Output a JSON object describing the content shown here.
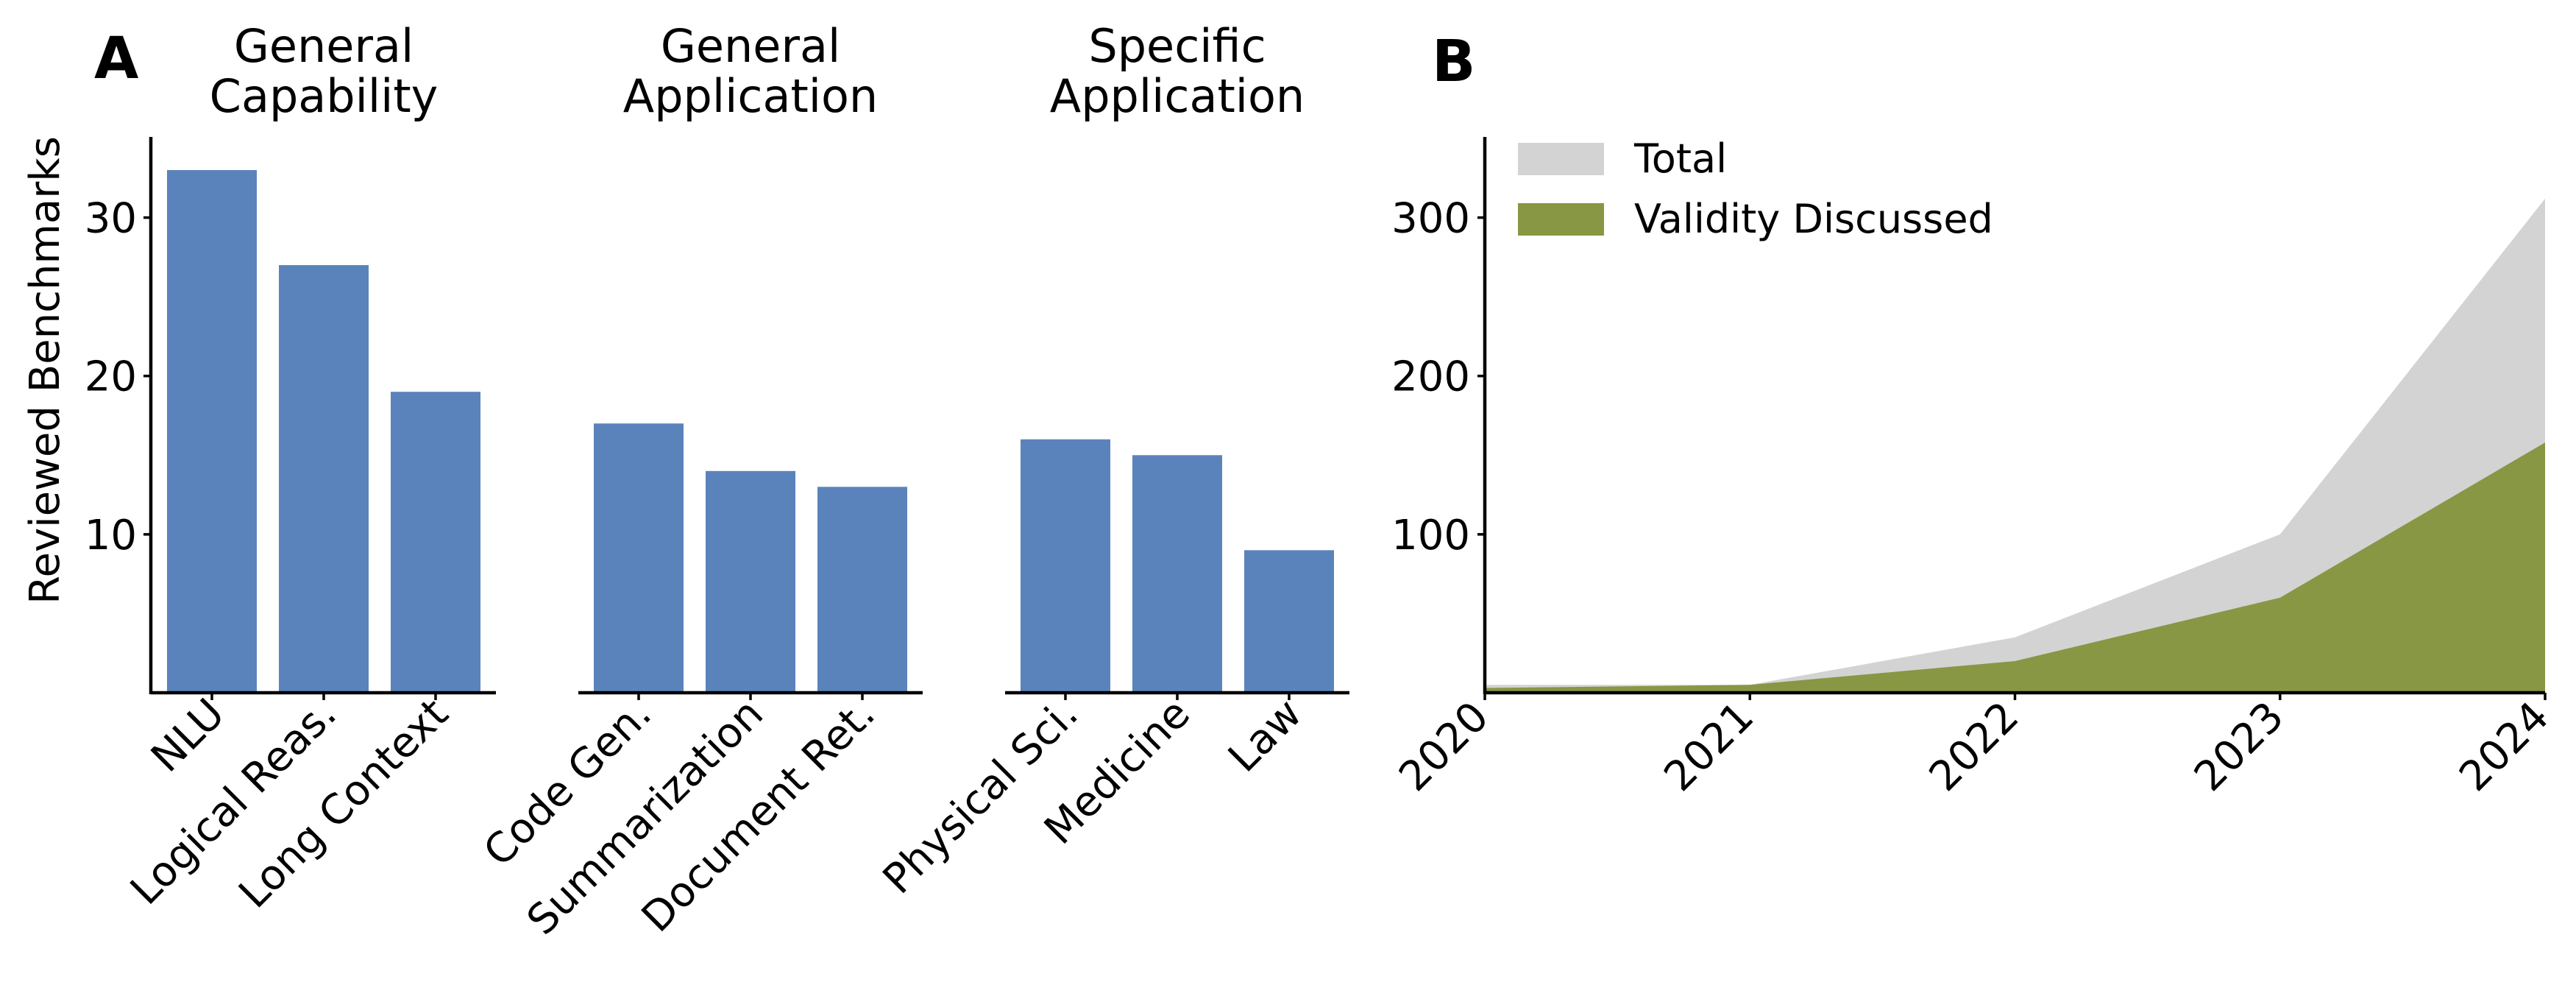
{
  "figure": {
    "panels": [
      {
        "letter": "A",
        "chart_data": {
          "type": "bar",
          "ylabel": "Reviewed Benchmarks",
          "ylim": [
            0,
            35
          ],
          "yticks": [
            10,
            20,
            30
          ],
          "grid": false,
          "bar_color": "#5b83bb",
          "groups": [
            {
              "title": [
                "General",
                "Capability"
              ],
              "categories": [
                "NLU",
                "Logical Reas.",
                "Long Context"
              ],
              "values": [
                33,
                27,
                19
              ]
            },
            {
              "title": [
                "General",
                "Application"
              ],
              "categories": [
                "Code Gen.",
                "Summarization",
                "Document Ret."
              ],
              "values": [
                17,
                14,
                13
              ]
            },
            {
              "title": [
                "Specific",
                "Application"
              ],
              "categories": [
                "Physical Sci.",
                "Medicine",
                "Law"
              ],
              "values": [
                16,
                15,
                9
              ]
            }
          ]
        }
      },
      {
        "letter": "B",
        "chart_data": {
          "type": "area",
          "x": [
            "2020",
            "2021",
            "2022",
            "2023",
            "2024"
          ],
          "ylim": [
            0,
            350
          ],
          "yticks": [
            100,
            200,
            300
          ],
          "grid": false,
          "legend_position": "top-left",
          "series": [
            {
              "name": "Total",
              "values": [
                5,
                5,
                35,
                100,
                312
              ],
              "color": "#d3d3d3"
            },
            {
              "name": "Validity Discussed",
              "values": [
                3,
                5,
                20,
                60,
                158
              ],
              "color": "#879744"
            }
          ]
        }
      }
    ]
  }
}
